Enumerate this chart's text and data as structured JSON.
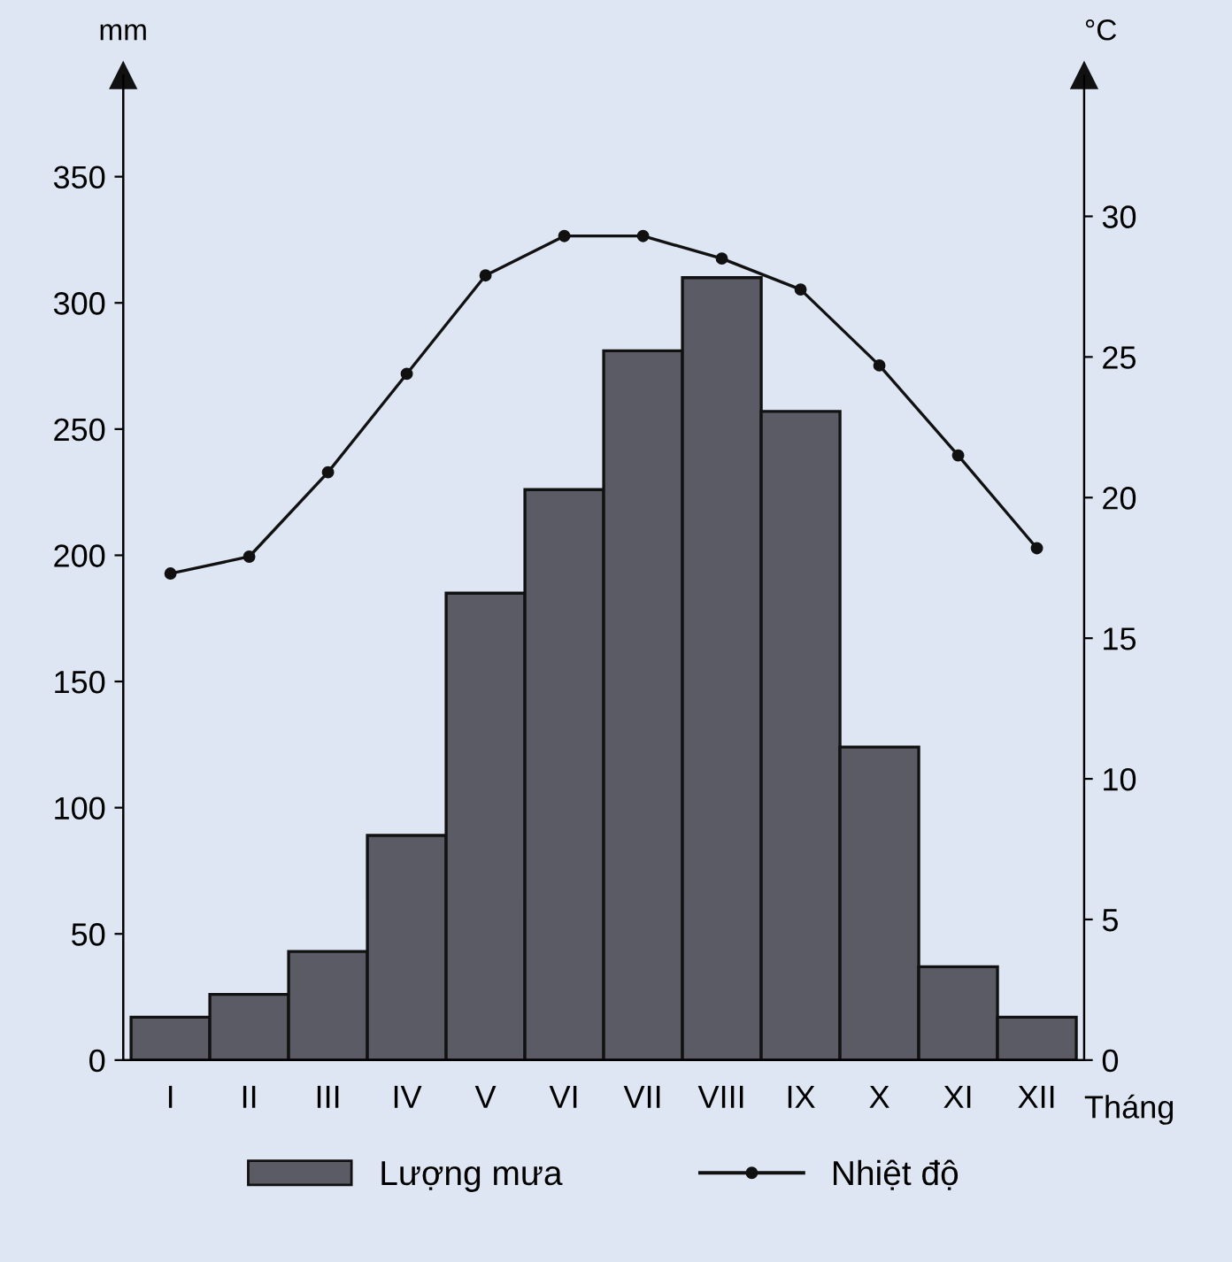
{
  "chart_data": {
    "type": "bar",
    "categories": [
      "I",
      "II",
      "III",
      "IV",
      "V",
      "VI",
      "VII",
      "VIII",
      "IX",
      "X",
      "XI",
      "XII"
    ],
    "xlabel": "Tháng",
    "ylabel": "mm",
    "y2label": "°C",
    "ylim": [
      0,
      390
    ],
    "yticks": [
      0,
      50,
      100,
      150,
      200,
      250,
      300,
      350
    ],
    "y2lim": [
      0,
      35
    ],
    "y2ticks": [
      0,
      5,
      10,
      15,
      20,
      25,
      30
    ],
    "series": [
      {
        "name": "Lượng mưa",
        "color": "#5b5b66",
        "values": [
          17,
          26,
          43,
          89,
          185,
          226,
          281,
          310,
          257,
          124,
          37,
          17
        ]
      },
      {
        "name": "Nhiệt độ",
        "type": "line",
        "axis": "y2",
        "color": "#111111",
        "marker": "circle",
        "line_style": "solid",
        "values": [
          17.3,
          17.9,
          20.9,
          24.4,
          27.9,
          29.3,
          29.3,
          28.5,
          27.4,
          24.7,
          21.5,
          18.2
        ]
      }
    ],
    "grid": false,
    "legend": "bottom"
  }
}
